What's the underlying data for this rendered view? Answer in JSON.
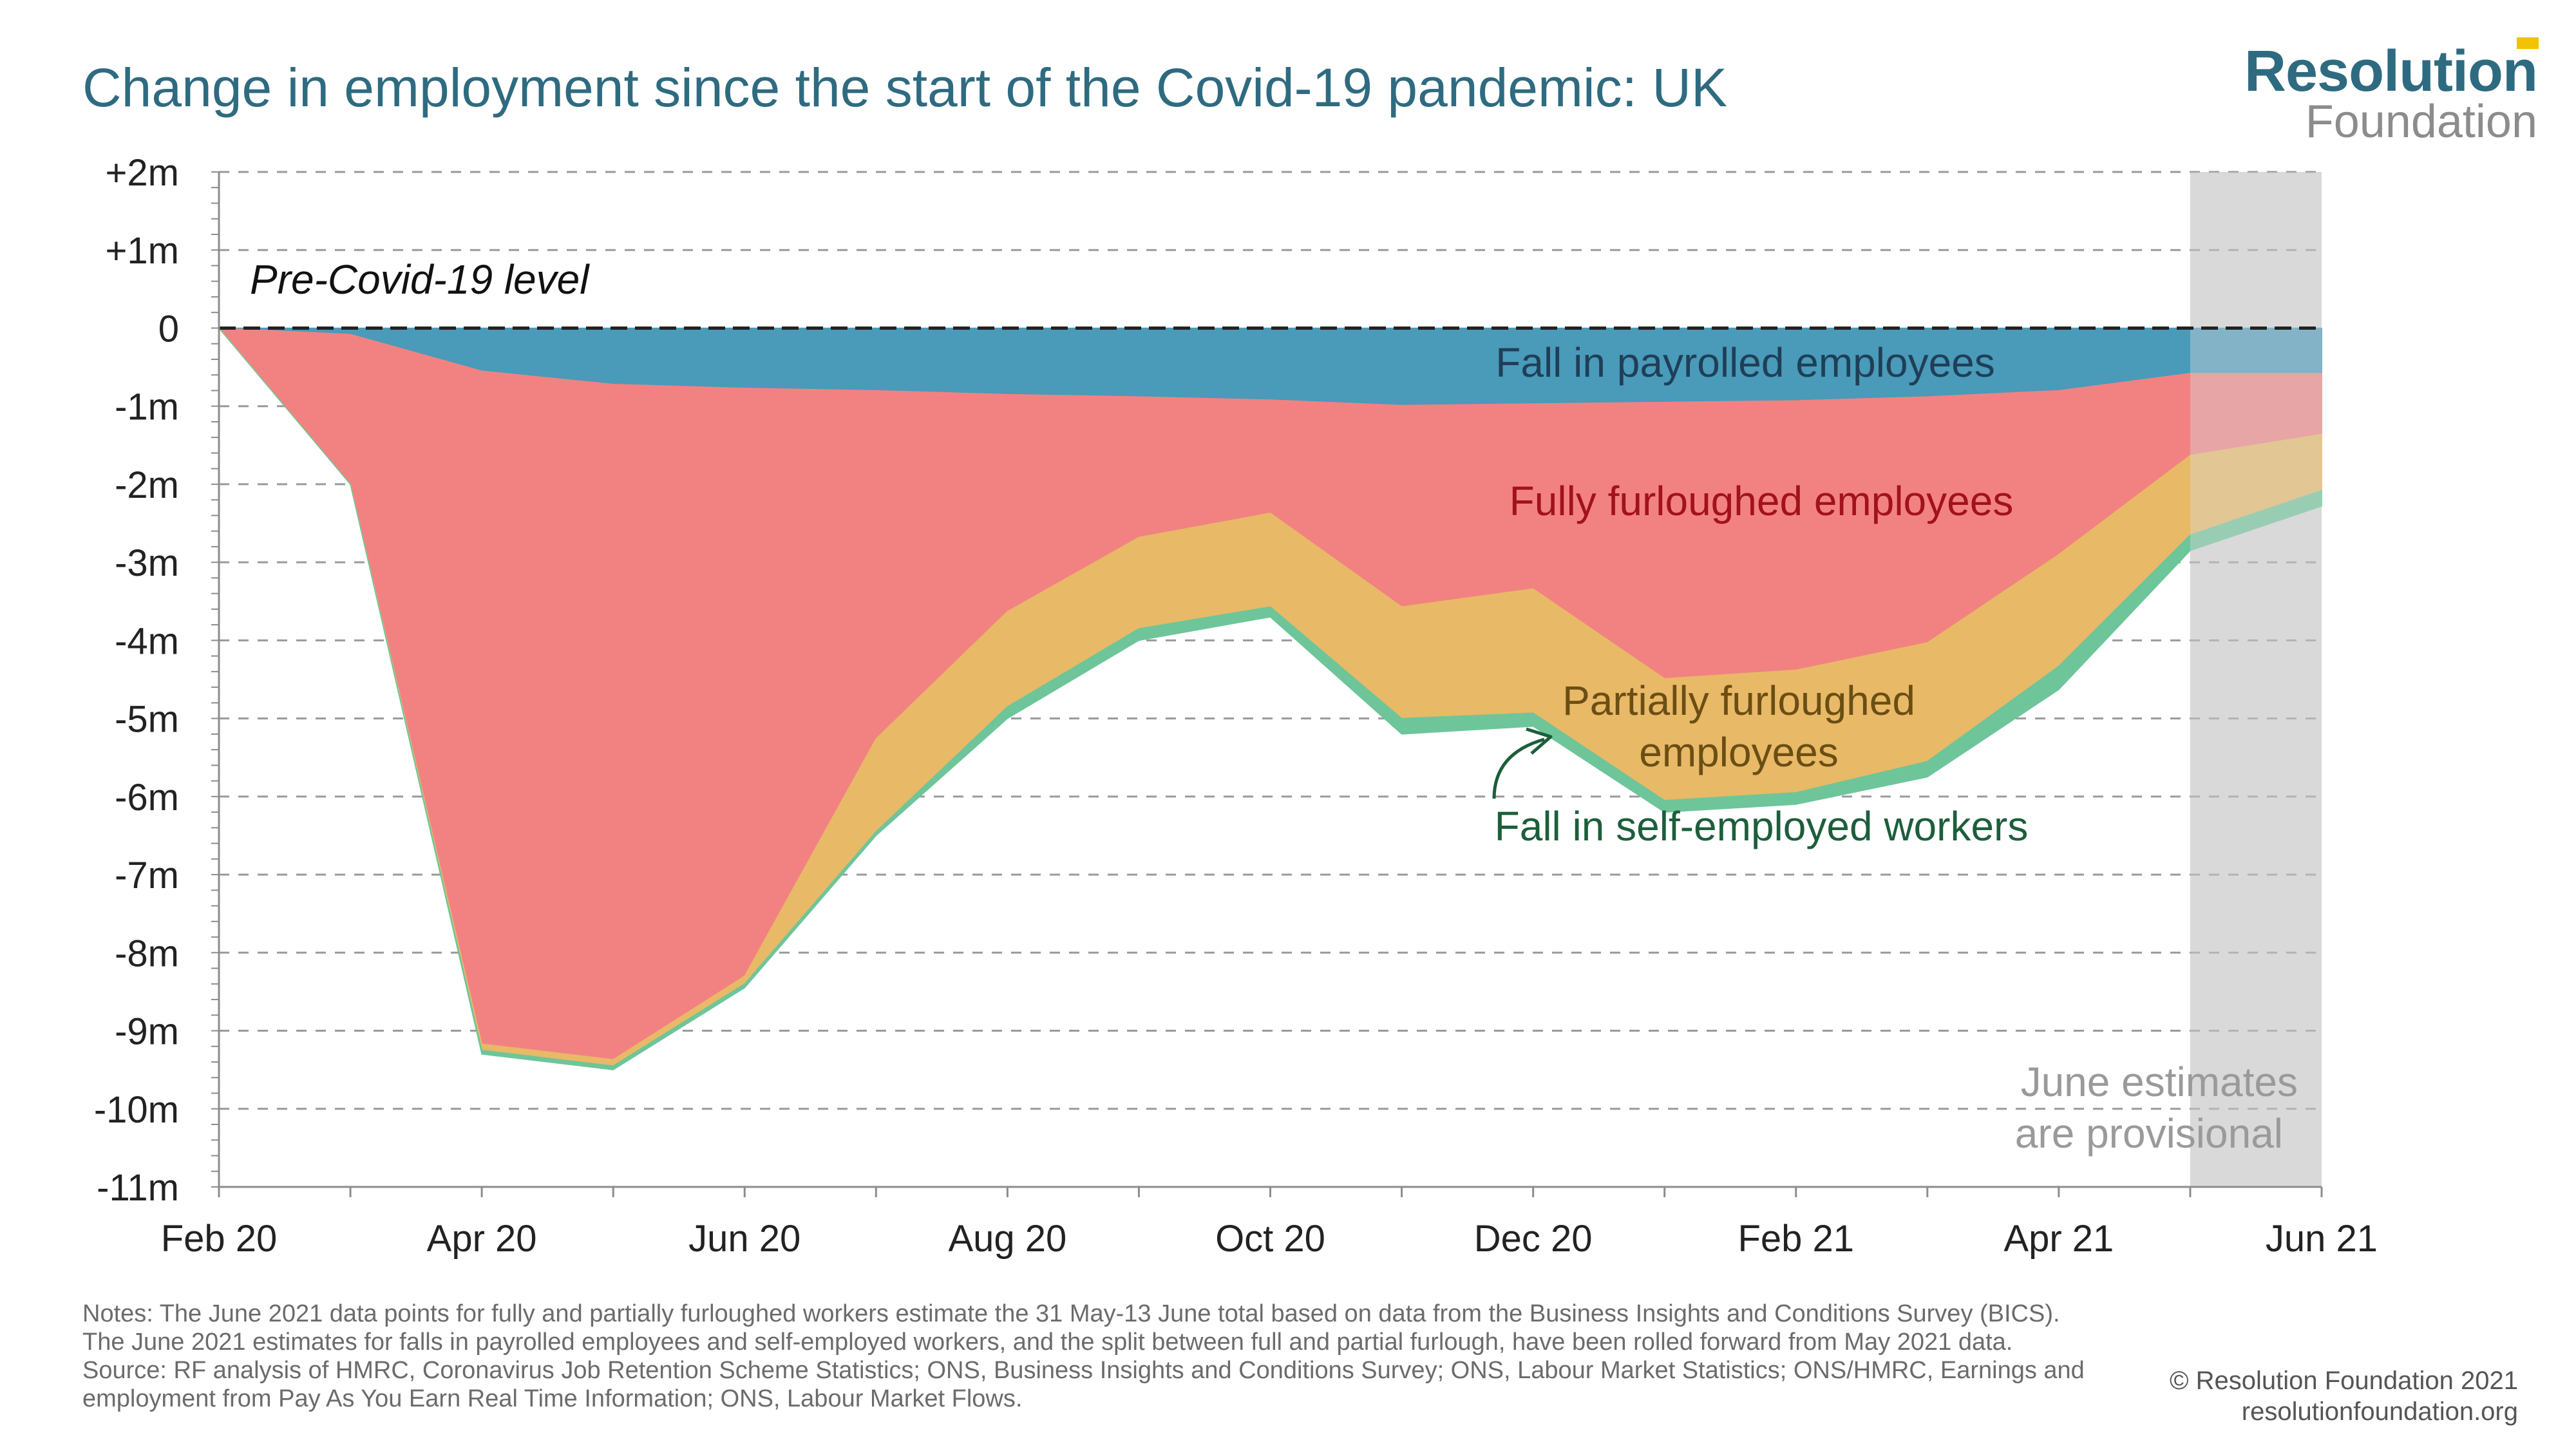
{
  "title": "Change in employment since the start of the Covid-19 pandemic: UK",
  "logo": {
    "line1": "Resolution",
    "line2": "Foundation"
  },
  "colors": {
    "title": "#2e6b80",
    "payrolled": "#4a9ab9",
    "fully_furloughed": "#f28282",
    "partially_furloughed": "#e8b967",
    "self_employed": "#6ec59a",
    "provisional_band": "#d9d9d9",
    "logo_accent": "#f2c300"
  },
  "chart_data": {
    "type": "area",
    "stacked": true,
    "x": [
      "Feb 20",
      "Mar 20",
      "Apr 20",
      "May 20",
      "Jun 20",
      "Jul 20",
      "Aug 20",
      "Sep 20",
      "Oct 20",
      "Nov 20",
      "Dec 20",
      "Jan 21",
      "Feb 21",
      "Mar 21",
      "Apr 21",
      "May 21",
      "Jun 21"
    ],
    "x_tick_labels": [
      "Feb 20",
      "Apr 20",
      "Jun 20",
      "Aug 20",
      "Oct 20",
      "Dec 20",
      "Feb 21",
      "Apr 21",
      "Jun 21"
    ],
    "y_tick_labels": [
      "+2m",
      "+1m",
      "0",
      "-1m",
      "-2m",
      "-3m",
      "-4m",
      "-5m",
      "-6m",
      "-7m",
      "-8m",
      "-9m",
      "-10m",
      "-11m"
    ],
    "ylim": [
      -11,
      2
    ],
    "units": "millions",
    "series": [
      {
        "name": "Fall in payrolled employees",
        "values": [
          0,
          -0.08,
          -0.55,
          -0.72,
          -0.77,
          -0.8,
          -0.85,
          -0.88,
          -0.92,
          -0.99,
          -0.97,
          -0.95,
          -0.93,
          -0.88,
          -0.8,
          -0.58,
          -0.58
        ]
      },
      {
        "name": "Fully furloughed employees",
        "values": [
          0,
          -1.92,
          -8.62,
          -8.65,
          -7.53,
          -4.46,
          -2.78,
          -1.8,
          -1.45,
          -2.58,
          -2.37,
          -3.54,
          -3.45,
          -3.15,
          -2.1,
          -1.05,
          -0.78
        ]
      },
      {
        "name": "Partially furloughed employees",
        "values": [
          0,
          0,
          -0.08,
          -0.08,
          -0.1,
          -1.19,
          -1.22,
          -1.17,
          -1.2,
          -1.43,
          -1.59,
          -1.56,
          -1.57,
          -1.52,
          -1.43,
          -1.02,
          -0.72
        ]
      },
      {
        "name": "Fall in self-employed workers",
        "values": [
          0,
          0,
          -0.05,
          -0.05,
          -0.05,
          -0.05,
          -0.15,
          -0.15,
          -0.13,
          -0.2,
          -0.17,
          -0.15,
          -0.15,
          -0.2,
          -0.3,
          -0.2,
          -0.2
        ]
      }
    ],
    "annotations": {
      "baseline": "Pre-Covid-19 level",
      "provisional": [
        "June estimates",
        "are provisional"
      ],
      "partially_label": [
        "Partially furloughed",
        "employees"
      ]
    },
    "grid": true
  },
  "notes": {
    "text": "Notes: The June 2021 data points for fully and partially furloughed workers estimate the 31 May-13 June total based on data from the Business Insights and Conditions Survey (BICS). The June 2021 estimates for falls in payrolled employees and self-employed workers, and the split between full and partial furlough, have been rolled forward from May 2021 data.",
    "source": "Source: RF analysis of HMRC, Coronavirus Job Retention Scheme Statistics; ONS, Business Insights and Conditions Survey; ONS, Labour Market Statistics; ONS/HMRC, Earnings and employment from Pay As You Earn Real Time Information; ONS, Labour Market Flows."
  },
  "footer": {
    "copyright": "© Resolution Foundation 2021",
    "site": "resolutionfoundation.org"
  }
}
